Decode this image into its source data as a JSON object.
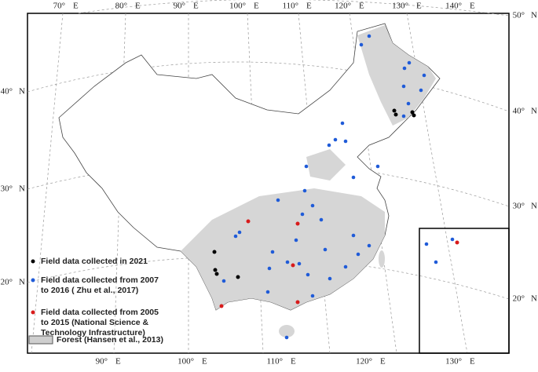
{
  "map": {
    "top_labels": [
      [
        "70°",
        "E"
      ],
      [
        "80°",
        "E"
      ],
      [
        "90°",
        "E"
      ],
      [
        "100°",
        "E"
      ],
      [
        "110°",
        "E"
      ],
      [
        "120°",
        "E"
      ],
      [
        "130°",
        "E"
      ],
      [
        "140°",
        "E"
      ]
    ],
    "bottom_labels": [
      [
        "90°",
        "E"
      ],
      [
        "100°",
        "E"
      ],
      [
        "110°",
        "E"
      ],
      [
        "120°",
        "E"
      ],
      [
        "130°",
        "E"
      ]
    ],
    "left_labels": [
      [
        "40°",
        "N"
      ],
      [
        "30°",
        "N"
      ],
      [
        "20°",
        "N"
      ]
    ],
    "right_labels": [
      [
        "50°",
        "N"
      ],
      [
        "40°",
        "N"
      ],
      [
        "30°",
        "N"
      ],
      [
        "20°",
        "N"
      ]
    ],
    "legend": [
      {
        "lines": [
          "Field data collected in 2021"
        ]
      },
      {
        "lines": [
          "Field data collected from 2007",
          "to 2016 ( Zhu et al., 2017)"
        ]
      },
      {
        "lines": [
          "Field data collected from 2005",
          "to 2015  (National Science &",
          "Technology Infrastructure)"
        ]
      },
      {
        "lines": [
          "Forest (Hansen et al., 2013)"
        ]
      }
    ]
  }
}
